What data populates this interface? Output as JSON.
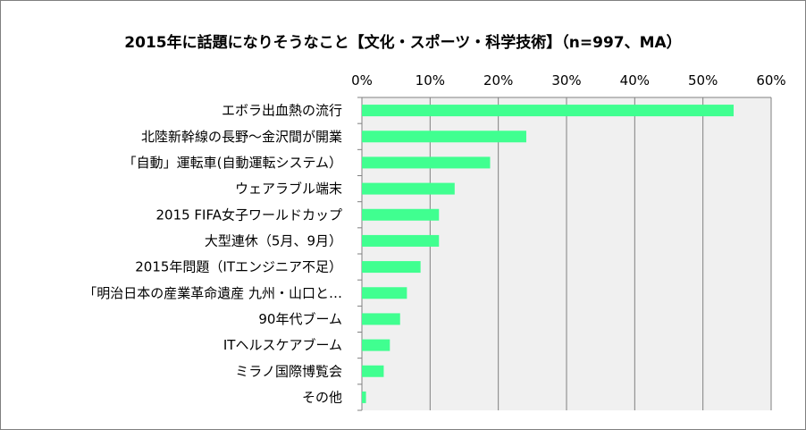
{
  "chart_data": {
    "type": "bar",
    "orientation": "horizontal",
    "title": "2015年に話題になりそうなこと【文化・スポーツ・科学技術】（n=997、MA）",
    "categories": [
      "エボラ出血熱の流行",
      "北陸新幹線の長野～金沢間が開業",
      "「自動」運転車(自動運転システム）",
      "ウェアラブル端末",
      "2015 FIFA女子ワールドカップ",
      "大型連休（5月、9月）",
      "2015年問題（ITエンジニア不足）",
      "「明治日本の産業革命遺産 九州・山口と…",
      "90年代ブーム",
      "ITヘルスケアブーム",
      "ミラノ国際博覧会",
      "その他"
    ],
    "values": [
      54.5,
      24.1,
      18.8,
      13.6,
      11.3,
      11.3,
      8.6,
      6.6,
      5.6,
      4.1,
      3.2,
      0.6
    ],
    "xlim": [
      0,
      60
    ],
    "x_ticks": [
      "0%",
      "10%",
      "20%",
      "30%",
      "40%",
      "50%",
      "60%"
    ],
    "grid": true,
    "xaxis_position": "top",
    "bar_color": "#40ff90",
    "plot_bg": "#f0f0f0",
    "grid_color": "#808080"
  }
}
